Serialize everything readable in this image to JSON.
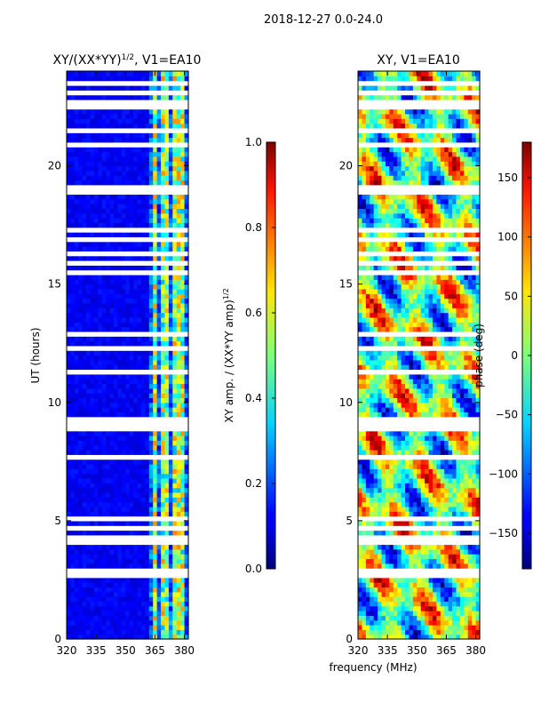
{
  "chart_data": {
    "type": "heatmap",
    "suptitle": "2018-12-27 0.0-24.0",
    "xlabel": "frequency (MHz)",
    "panels": [
      {
        "name": "amplitude-ratio",
        "title_main": "XY/(XX*YY)",
        "title_exp": "1/2",
        "title_rest": ", V1=EA10",
        "ylabel": "UT (hours)",
        "xlim": [
          320,
          382
        ],
        "ylim": [
          0,
          24
        ],
        "xticks": [
          "320",
          "335",
          "350",
          "365",
          "380"
        ],
        "yticks": [
          "0",
          "5",
          "10",
          "15",
          "20"
        ],
        "colormap": "jet",
        "colorbar": {
          "label_main": "XY amp. / (XX*YY amp)",
          "label_exp": "1/2",
          "range": [
            0.0,
            1.0
          ],
          "ticks": [
            "0.0",
            "0.2",
            "0.4",
            "0.6",
            "0.8",
            "1.0"
          ]
        }
      },
      {
        "name": "phase",
        "title": "XY, V1=EA10",
        "xlim": [
          320,
          382
        ],
        "ylim": [
          0,
          24
        ],
        "xticks": [
          "320",
          "335",
          "350",
          "365",
          "380"
        ],
        "yticks": [
          "0",
          "5",
          "10",
          "15",
          "20"
        ],
        "colormap": "jet",
        "colorbar": {
          "label": "phase (deg)",
          "range": [
            -180,
            180
          ],
          "ticks": [
            "−150",
            "−100",
            "−50",
            "0",
            "50",
            "100",
            "150"
          ]
        }
      }
    ],
    "flagged_gaps_hours": [
      [
        0.95,
        1.0
      ],
      [
        2.2,
        2.3
      ],
      [
        2.7,
        3.05
      ],
      [
        3.15,
        3.2
      ],
      [
        3.6,
        3.7
      ],
      [
        4.05,
        4.15
      ],
      [
        4.3,
        4.38
      ],
      [
        4.55,
        4.7
      ],
      [
        4.95,
        5.25
      ],
      [
        6.05,
        6.1
      ],
      [
        6.9,
        7.0
      ],
      [
        7.25,
        7.3
      ],
      [
        7.65,
        7.7
      ],
      [
        8.05,
        8.1
      ],
      [
        8.85,
        8.95
      ],
      [
        9.1,
        9.3
      ],
      [
        9.75,
        9.85
      ],
      [
        10.3,
        10.4
      ],
      [
        10.75,
        10.85
      ],
      [
        11.2,
        11.3
      ],
      [
        11.55,
        11.65
      ],
      [
        12.2,
        12.3
      ],
      [
        12.6,
        12.7
      ],
      [
        12.85,
        13.0
      ],
      [
        14.15,
        14.25
      ],
      [
        14.8,
        14.9
      ],
      [
        15.45,
        15.55
      ],
      [
        15.9,
        16.0
      ],
      [
        16.2,
        16.35
      ],
      [
        16.9,
        17.05
      ],
      [
        17.3,
        17.5
      ],
      [
        17.8,
        17.9
      ],
      [
        18.15,
        18.25
      ],
      [
        18.4,
        18.5
      ],
      [
        18.85,
        18.95
      ],
      [
        19.1,
        19.2
      ],
      [
        19.4,
        19.5
      ],
      [
        19.75,
        19.85
      ],
      [
        20.9,
        21.0
      ],
      [
        21.2,
        21.3
      ],
      [
        21.4,
        21.55
      ],
      [
        22.35,
        22.9
      ],
      [
        23.05,
        23.2
      ],
      [
        23.45,
        23.55
      ]
    ],
    "bright_channel_bands_mhz": [
      [
        363.5,
        366.5
      ],
      [
        368.5,
        371.5
      ],
      [
        373.5,
        375.5
      ],
      [
        377,
        378
      ],
      [
        379,
        381
      ]
    ]
  }
}
